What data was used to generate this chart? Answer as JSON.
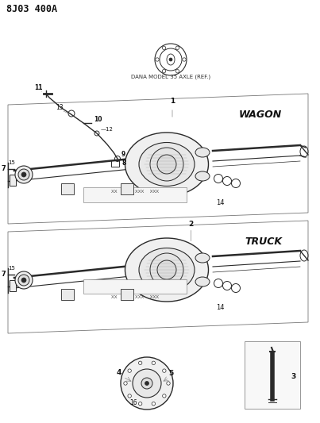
{
  "title": "8J03 400A",
  "bg_color": "#ffffff",
  "dana_label": "DANA MODEL 35 AXLE (REF.)",
  "wagon_label": "WAGON",
  "truck_label": "TRUCK",
  "lc": "#2a2a2a",
  "gray": "#888888",
  "light_gray": "#cccccc"
}
